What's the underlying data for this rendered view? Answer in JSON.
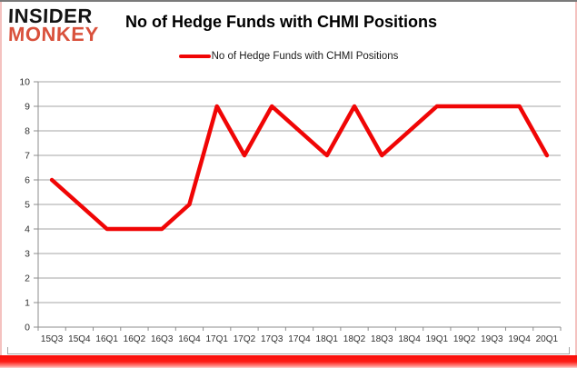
{
  "header": {
    "logo_line1": "INSIDER",
    "logo_line2": "MONKEY",
    "title": "No of Hedge Funds with CHMI Positions"
  },
  "legend": {
    "label": "No of Hedge Funds with CHMI Positions"
  },
  "chart_data": {
    "type": "line",
    "title": "No of Hedge Funds with CHMI Positions",
    "categories": [
      "15Q3",
      "15Q4",
      "16Q1",
      "16Q2",
      "16Q3",
      "16Q4",
      "17Q1",
      "17Q2",
      "17Q3",
      "17Q4",
      "18Q1",
      "18Q2",
      "18Q3",
      "18Q4",
      "19Q1",
      "19Q2",
      "19Q3",
      "19Q4",
      "20Q1"
    ],
    "series": [
      {
        "name": "No of Hedge Funds with CHMI Positions",
        "values": [
          6,
          5,
          4,
          4,
          4,
          5,
          9,
          7,
          9,
          8,
          7,
          9,
          7,
          8,
          9,
          9,
          9,
          9,
          7
        ]
      }
    ],
    "xlabel": "",
    "ylabel": "",
    "ylim": [
      0,
      10
    ],
    "ytick_step": 1,
    "grid": true,
    "legend_position": "top"
  },
  "colors": {
    "line_red": "#f00505",
    "logo_red": "#d9513c",
    "grid_gray": "#a6a6a6",
    "axis_gray": "#8c8c8c",
    "label_color": "#303030",
    "bottom_bar_red": "#fa0d09",
    "side_border_pink": "#f4c2c0"
  }
}
